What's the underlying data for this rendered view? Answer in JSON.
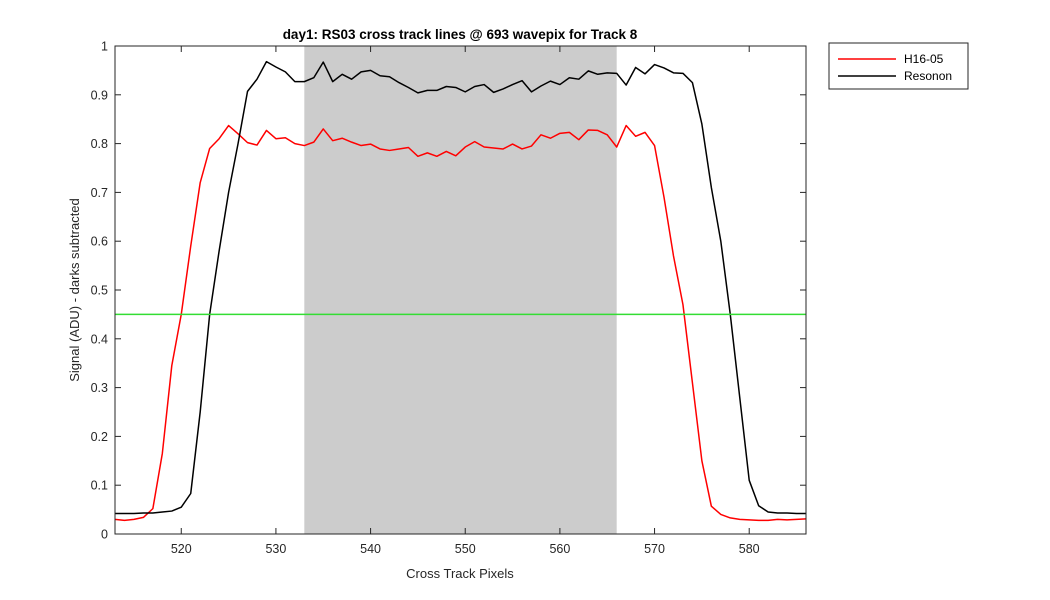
{
  "chart_data": {
    "type": "line",
    "title": "day1: RS03  cross track lines @ 693 wavepix for Track 8",
    "xlabel": "Cross Track Pixels",
    "ylabel": "Signal (ADU) - darks subtracted",
    "xlim": [
      513,
      586
    ],
    "ylim": [
      0,
      1
    ],
    "xticks": [
      520,
      530,
      540,
      550,
      560,
      570,
      580
    ],
    "yticks": [
      0,
      0.1,
      0.2,
      0.3,
      0.4,
      0.5,
      0.6,
      0.7,
      0.8,
      0.9,
      1
    ],
    "grid": false,
    "legend_position": "outside-top-right",
    "shaded_region": {
      "x_start": 533,
      "x_end": 566,
      "color": "#cccccc"
    },
    "threshold_line": {
      "y": 0.45,
      "color": "#33dd33"
    },
    "series": [
      {
        "name": "H16-05",
        "color": "#ff0000",
        "x": [
          513,
          514,
          515,
          516,
          517,
          518,
          519,
          520,
          521,
          522,
          523,
          524,
          525,
          526,
          527,
          528,
          529,
          530,
          531,
          532,
          533,
          534,
          535,
          536,
          537,
          538,
          539,
          540,
          541,
          542,
          543,
          544,
          545,
          546,
          547,
          548,
          549,
          550,
          551,
          552,
          553,
          554,
          555,
          556,
          557,
          558,
          559,
          560,
          561,
          562,
          563,
          564,
          565,
          566,
          567,
          568,
          569,
          570,
          571,
          572,
          573,
          574,
          575,
          576,
          577,
          578,
          579,
          580,
          581,
          582,
          583,
          584,
          585,
          586
        ],
        "y": [
          0.03,
          0.028,
          0.03,
          0.034,
          0.052,
          0.165,
          0.345,
          0.45,
          0.59,
          0.72,
          0.79,
          0.81,
          0.837,
          0.82,
          0.802,
          0.797,
          0.827,
          0.81,
          0.812,
          0.8,
          0.796,
          0.803,
          0.83,
          0.806,
          0.811,
          0.803,
          0.796,
          0.799,
          0.789,
          0.786,
          0.789,
          0.792,
          0.774,
          0.781,
          0.774,
          0.784,
          0.775,
          0.793,
          0.804,
          0.793,
          0.791,
          0.789,
          0.799,
          0.789,
          0.795,
          0.818,
          0.811,
          0.821,
          0.823,
          0.808,
          0.828,
          0.827,
          0.818,
          0.793,
          0.837,
          0.815,
          0.823,
          0.796,
          0.69,
          0.57,
          0.47,
          0.31,
          0.15,
          0.057,
          0.04,
          0.033,
          0.03,
          0.029,
          0.028,
          0.028,
          0.03,
          0.029,
          0.03,
          0.031
        ]
      },
      {
        "name": "Resonon",
        "color": "#000000",
        "x": [
          513,
          514,
          515,
          516,
          517,
          518,
          519,
          520,
          521,
          522,
          523,
          524,
          525,
          526,
          527,
          528,
          529,
          530,
          531,
          532,
          533,
          534,
          535,
          536,
          537,
          538,
          539,
          540,
          541,
          542,
          543,
          544,
          545,
          546,
          547,
          548,
          549,
          550,
          551,
          552,
          553,
          554,
          555,
          556,
          557,
          558,
          559,
          560,
          561,
          562,
          563,
          564,
          565,
          566,
          567,
          568,
          569,
          570,
          571,
          572,
          573,
          574,
          575,
          576,
          577,
          578,
          579,
          580,
          581,
          582,
          583,
          584,
          585,
          586
        ],
        "y": [
          0.042,
          0.042,
          0.042,
          0.043,
          0.043,
          0.045,
          0.047,
          0.055,
          0.083,
          0.25,
          0.45,
          0.58,
          0.7,
          0.8,
          0.907,
          0.932,
          0.968,
          0.957,
          0.947,
          0.927,
          0.927,
          0.935,
          0.967,
          0.927,
          0.942,
          0.932,
          0.947,
          0.95,
          0.939,
          0.937,
          0.925,
          0.915,
          0.904,
          0.909,
          0.909,
          0.917,
          0.915,
          0.906,
          0.917,
          0.921,
          0.905,
          0.912,
          0.921,
          0.929,
          0.906,
          0.918,
          0.928,
          0.921,
          0.935,
          0.932,
          0.949,
          0.942,
          0.945,
          0.944,
          0.92,
          0.956,
          0.943,
          0.962,
          0.955,
          0.945,
          0.944,
          0.925,
          0.84,
          0.71,
          0.6,
          0.45,
          0.28,
          0.11,
          0.058,
          0.045,
          0.043,
          0.043,
          0.042,
          0.042
        ]
      }
    ]
  }
}
